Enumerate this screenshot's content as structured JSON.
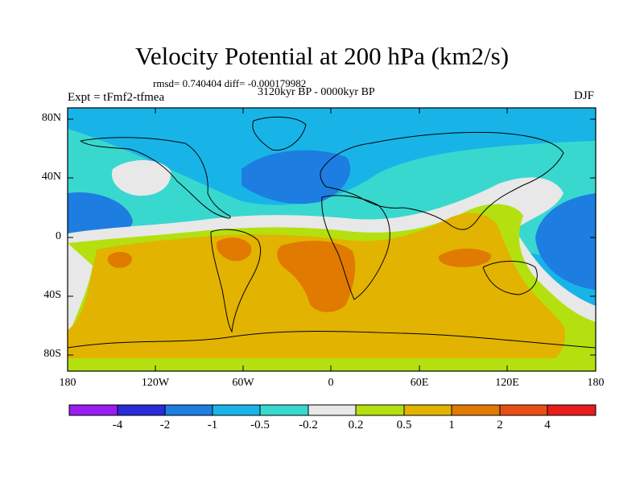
{
  "title": "Velocity Potential at 200 hPa (km2/s)",
  "subtitle_stats": "rmsd= 0.740404 diff= -0.000179982",
  "period": "3120kyr BP - 0000kyr BP",
  "experiment": "Expt = tFmf2-tfmea",
  "season": "DJF",
  "y_ticks": [
    "80N",
    "40N",
    "0",
    "40S",
    "80S"
  ],
  "x_ticks": [
    "180",
    "120W",
    "60W",
    "0",
    "60E",
    "120E",
    "180"
  ],
  "colorbar": {
    "labels": [
      "-4",
      "-2",
      "-1",
      "-0.5",
      "-0.2",
      "0.2",
      "0.5",
      "1",
      "2",
      "4"
    ],
    "colors": [
      "#9a1cf0",
      "#2a2ad8",
      "#1d7de0",
      "#18b4e8",
      "#38d8cf",
      "#e8e8e8",
      "#b4e010",
      "#e2b300",
      "#e07a00",
      "#e84e14",
      "#e81c1c"
    ]
  },
  "fill_colors": {
    "ocean_bg": "#18b4e8",
    "mid_blue": "#1d7de0",
    "teal": "#38d8cf",
    "white": "#e8e8e8",
    "yellow_green": "#b4e010",
    "gold": "#e2b300",
    "orange": "#e07a00"
  }
}
